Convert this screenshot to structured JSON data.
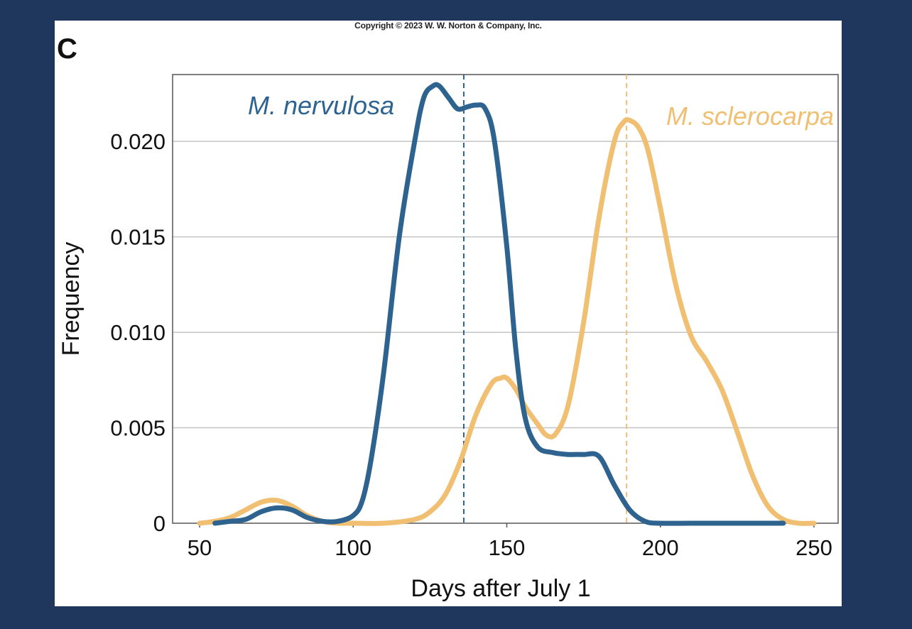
{
  "copyright": "Copyright © 2023 W. W. Norton & Company, Inc.",
  "panel_label": "C",
  "chart_data": {
    "type": "line",
    "title": "",
    "xlabel": "Days after July 1",
    "ylabel": "Frequency",
    "xlim": [
      45,
      252
    ],
    "ylim": [
      0,
      0.0235
    ],
    "xticks": [
      50,
      100,
      150,
      200,
      250
    ],
    "yticks": [
      0,
      0.005,
      0.01,
      0.015,
      0.02
    ],
    "ytick_labels": [
      "0",
      "0.005",
      "0.010",
      "0.015",
      "0.020"
    ],
    "grid": "horizontal",
    "series": [
      {
        "name": "M. nervulosa",
        "color": "#2e6390",
        "x": [
          55,
          60,
          65,
          70,
          75,
          80,
          85,
          90,
          95,
          100,
          103,
          106,
          110,
          115,
          120,
          123,
          126,
          128,
          131,
          134,
          137,
          140,
          143,
          146,
          150,
          153,
          156,
          160,
          165,
          170,
          175,
          180,
          185,
          190,
          195,
          200,
          210,
          220,
          230,
          240
        ],
        "y": [
          0,
          0.0001,
          0.0002,
          0.0006,
          0.0008,
          0.0007,
          0.0003,
          0.0001,
          0.0001,
          0.0004,
          0.0012,
          0.0035,
          0.008,
          0.015,
          0.02,
          0.0223,
          0.0229,
          0.0229,
          0.0223,
          0.0217,
          0.0218,
          0.0219,
          0.0217,
          0.02,
          0.0145,
          0.009,
          0.0055,
          0.004,
          0.0037,
          0.0036,
          0.0036,
          0.0035,
          0.002,
          0.0007,
          0.0001,
          0,
          0,
          0,
          0,
          0
        ],
        "mean": 136,
        "label": "M. nervulosa"
      },
      {
        "name": "M. sclerocarpa",
        "color": "#f0bf72",
        "x": [
          50,
          55,
          60,
          65,
          70,
          75,
          80,
          85,
          90,
          95,
          100,
          110,
          120,
          125,
          130,
          135,
          140,
          145,
          148,
          150,
          153,
          156,
          160,
          163,
          166,
          170,
          175,
          180,
          185,
          188,
          190,
          193,
          196,
          200,
          205,
          210,
          215,
          220,
          225,
          230,
          235,
          240,
          245,
          250
        ],
        "y": [
          0,
          0.0001,
          0.0003,
          0.0007,
          0.0011,
          0.0012,
          0.0009,
          0.0004,
          0.0001,
          0,
          0,
          0,
          0.0002,
          0.0006,
          0.0015,
          0.0033,
          0.0057,
          0.0073,
          0.0076,
          0.0076,
          0.007,
          0.0061,
          0.0052,
          0.0046,
          0.0047,
          0.0062,
          0.0105,
          0.016,
          0.02,
          0.021,
          0.0211,
          0.0207,
          0.0195,
          0.0165,
          0.0125,
          0.0098,
          0.0085,
          0.007,
          0.0048,
          0.0025,
          0.0009,
          0.0002,
          0,
          0
        ],
        "mean": 189,
        "label": "M. sclerocarpa"
      }
    ]
  }
}
